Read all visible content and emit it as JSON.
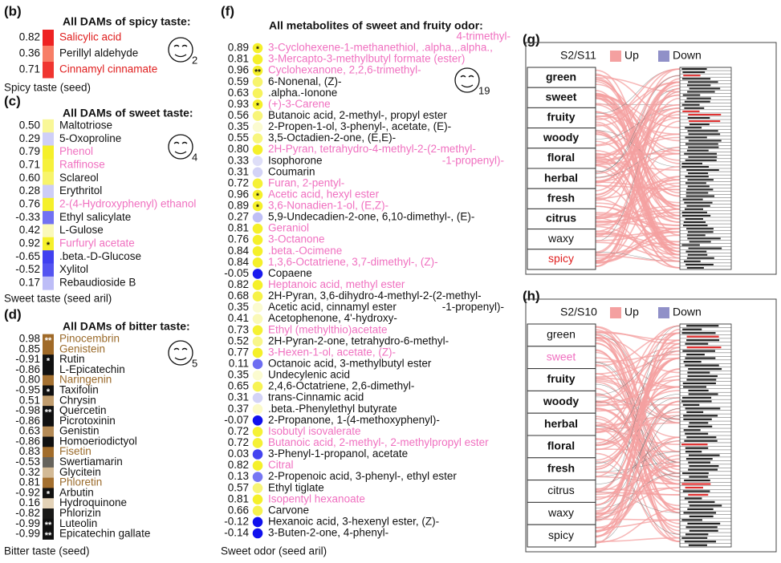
{
  "taste_panels": [
    {
      "label": "(b)",
      "title": "All DAMs of spicy taste:",
      "footer": "Spicy taste (seed)",
      "icon_count": "2",
      "highlight_color": "#e02020",
      "star_color": "#111",
      "colors": {
        "base": "#ffc9a0",
        "high": "#ee2222",
        "low": "#ee2222"
      },
      "rows": [
        {
          "value": "0.82",
          "name": "Salicylic acid",
          "highlight": true
        },
        {
          "value": "0.36",
          "name": "Perillyl aldehyde"
        },
        {
          "value": "0.71",
          "name": "Cinnamyl cinnamate",
          "highlight": true
        }
      ]
    },
    {
      "label": "(c)",
      "title": "All DAMs of sweet taste:",
      "footer": "Sweet taste (seed aril)",
      "icon_count": "4",
      "highlight_color": "#f070c0",
      "star_color": "#111",
      "colors": {
        "base": "#fbfbd8",
        "high": "#f5f02a",
        "low": "#4040f0"
      },
      "rows": [
        {
          "value": "0.50",
          "name": "Maltotriose"
        },
        {
          "value": "0.29",
          "name": "5-Oxoproline"
        },
        {
          "value": "0.79",
          "name": "Phenol",
          "highlight": true
        },
        {
          "value": "0.71",
          "name": "Raffinose",
          "highlight": true
        },
        {
          "value": "0.60",
          "name": "Sclareol"
        },
        {
          "value": "0.28",
          "name": "Erythritol"
        },
        {
          "value": "0.76",
          "name": "2-(4-Hydroxyphenyl) ethanol",
          "highlight": true
        },
        {
          "value": "-0.33",
          "name": "Ethyl salicylate"
        },
        {
          "value": "0.42",
          "name": "L-Gulose"
        },
        {
          "value": "0.92",
          "name": "Furfuryl acetate",
          "highlight": true,
          "star": "*"
        },
        {
          "value": "-0.65",
          "name": ".beta.-D-Glucose"
        },
        {
          "value": "-0.52",
          "name": "Xylitol"
        },
        {
          "value": "0.17",
          "name": "Rebaudioside B"
        }
      ]
    },
    {
      "label": "(d)",
      "title": "All DAMs of bitter taste:",
      "footer": "Bitter taste (seed)",
      "icon_count": "5",
      "highlight_color": "#9a6a2a",
      "star_color": "#fff",
      "colors": {
        "base": "#f2ead8",
        "high": "#a06a28",
        "low": "#111111"
      },
      "rows": [
        {
          "value": "0.98",
          "name": "Pinocembrin",
          "highlight": true,
          "star": "**"
        },
        {
          "value": "0.85",
          "name": "Genistein",
          "highlight": true
        },
        {
          "value": "-0.91",
          "name": "Rutin",
          "star": "*"
        },
        {
          "value": "-0.86",
          "name": "L-Epicatechin"
        },
        {
          "value": "0.80",
          "name": "Naringenin",
          "highlight": true
        },
        {
          "value": "-0.95",
          "name": "Taxifolin",
          "star": "*"
        },
        {
          "value": "0.51",
          "name": "Chrysin"
        },
        {
          "value": "-0.98",
          "name": "Quercetin",
          "star": "**"
        },
        {
          "value": "-0.86",
          "name": "Picrotoxinin"
        },
        {
          "value": "0.63",
          "name": "Genistin"
        },
        {
          "value": "-0.86",
          "name": "Homoeriodictyol"
        },
        {
          "value": "0.83",
          "name": "Fisetin",
          "highlight": true
        },
        {
          "value": "-0.53",
          "name": "Swertiamarin"
        },
        {
          "value": "0.32",
          "name": "Glycitein"
        },
        {
          "value": "0.81",
          "name": "Phloretin",
          "highlight": true
        },
        {
          "value": "-0.92",
          "name": "Arbutin",
          "star": "*"
        },
        {
          "value": "0.16",
          "name": "Hydroquinone"
        },
        {
          "value": "-0.82",
          "name": "Phlorizin"
        },
        {
          "value": "-0.99",
          "name": "Luteolin",
          "star": "**"
        },
        {
          "value": "-0.99",
          "name": "Epicatechin gallate",
          "star": "**"
        }
      ]
    }
  ],
  "odor_panel": {
    "label": "(f)",
    "title": "All metabolites of sweet and fruity odor:",
    "footer": "Sweet odor (seed aril)",
    "icon_count": "19",
    "highlight_color": "#f070c0",
    "colors": {
      "base": "#e8e8f8",
      "high": "#f5f02a",
      "low": "#1010ee"
    },
    "rows": [
      {
        "value": "0.89",
        "name": "3-Cyclohexene-1-methanethiol, .alpha.,.alpha.,",
        "wrap": "4-trimethyl-",
        "highlight": true,
        "star": "*"
      },
      {
        "value": "0.81",
        "name": "3-Mercapto-3-methylbutyl formate (ester)",
        "highlight": true
      },
      {
        "value": "0.96",
        "name": "Cyclohexanone, 2,2,6-trimethyl-",
        "highlight": true,
        "star": "**"
      },
      {
        "value": "0.59",
        "name": "6-Nonenal, (Z)-"
      },
      {
        "value": "0.63",
        "name": ".alpha.-Ionone"
      },
      {
        "value": "0.93",
        "name": "(+)-3-Carene",
        "highlight": true,
        "star": "*"
      },
      {
        "value": "0.56",
        "name": "Butanoic acid, 2-methyl-, propyl ester"
      },
      {
        "value": "0.35",
        "name": "2-Propen-1-ol, 3-phenyl-, acetate, (E)-"
      },
      {
        "value": "0.55",
        "name": "3,5-Octadien-2-one, (E,E)-"
      },
      {
        "value": "0.80",
        "name": "2H-Pyran, tetrahydro-4-methyl-2-(2-methyl-",
        "wrap": "-1-propenyl)-",
        "highlight": true
      },
      {
        "value": "0.33",
        "name": "Isophorone"
      },
      {
        "value": "0.31",
        "name": "Coumarin"
      },
      {
        "value": "0.72",
        "name": "Furan, 2-pentyl-",
        "highlight": true
      },
      {
        "value": "0.96",
        "name": "Acetic acid, hexyl ester",
        "highlight": true,
        "star": "*"
      },
      {
        "value": "0.89",
        "name": "3,6-Nonadien-1-ol, (E,Z)-",
        "highlight": true,
        "star": "*"
      },
      {
        "value": "0.27",
        "name": "5,9-Undecadien-2-one, 6,10-dimethyl-, (E)-"
      },
      {
        "value": "0.81",
        "name": "Geraniol",
        "highlight": true
      },
      {
        "value": "0.76",
        "name": "3-Octanone",
        "highlight": true
      },
      {
        "value": "0.84",
        "name": ".beta.-Ocimene",
        "highlight": true
      },
      {
        "value": "0.84",
        "name": "1,3,6-Octatriene, 3,7-dimethyl-, (Z)-",
        "highlight": true
      },
      {
        "value": "-0.05",
        "name": "Copaene"
      },
      {
        "value": "0.82",
        "name": "Heptanoic acid, methyl ester",
        "highlight": true
      },
      {
        "value": "0.68",
        "name": "2H-Pyran, 3,6-dihydro-4-methyl-2-(2-methyl-",
        "wrap": "-1-propenyl)-"
      },
      {
        "value": "0.35",
        "name": "Acetic acid, cinnamyl ester"
      },
      {
        "value": "0.41",
        "name": "Acetophenone, 4'-hydroxy-"
      },
      {
        "value": "0.73",
        "name": "Ethyl (methylthio)acetate",
        "highlight": true
      },
      {
        "value": "0.52",
        "name": "2H-Pyran-2-one, tetrahydro-6-methyl-"
      },
      {
        "value": "0.77",
        "name": "3-Hexen-1-ol, acetate, (Z)-",
        "highlight": true
      },
      {
        "value": "0.11",
        "name": "Octanoic acid, 3-methylbutyl ester"
      },
      {
        "value": "0.35",
        "name": "Undecylenic acid"
      },
      {
        "value": "0.65",
        "name": "2,4,6-Octatriene, 2,6-dimethyl-"
      },
      {
        "value": "0.31",
        "name": "trans-Cinnamic acid"
      },
      {
        "value": "0.37",
        "name": ".beta.-Phenylethyl butyrate"
      },
      {
        "value": "-0.07",
        "name": "2-Propanone, 1-(4-methoxyphenyl)-"
      },
      {
        "value": "0.72",
        "name": "Isobutyl isovalerate",
        "highlight": true
      },
      {
        "value": "0.72",
        "name": "Butanoic acid, 2-methyl-, 2-methylpropyl ester",
        "highlight": true
      },
      {
        "value": "0.03",
        "name": "3-Phenyl-1-propanol, acetate"
      },
      {
        "value": "0.82",
        "name": "Citral",
        "highlight": true
      },
      {
        "value": "0.13",
        "name": "2-Propenoic acid, 3-phenyl-, ethyl ester"
      },
      {
        "value": "0.57",
        "name": "Ethyl tiglate"
      },
      {
        "value": "0.81",
        "name": "Isopentyl hexanoate",
        "highlight": true
      },
      {
        "value": "0.66",
        "name": "Carvone"
      },
      {
        "value": "-0.12",
        "name": "Hexanoic acid, 3-hexenyl ester, (Z)-"
      },
      {
        "value": "-0.14",
        "name": "3-Buten-2-one, 4-phenyl-"
      }
    ]
  },
  "sankey_panels": [
    {
      "label": "(g)",
      "comparison": "S2/S11",
      "legend": [
        {
          "name": "Up",
          "color": "#f4a0a0"
        },
        {
          "name": "Down",
          "color": "#9090c8"
        }
      ],
      "categories": [
        {
          "name": "green",
          "bold": true
        },
        {
          "name": "sweet",
          "bold": true
        },
        {
          "name": "fruity",
          "bold": true
        },
        {
          "name": "woody",
          "bold": true
        },
        {
          "name": "floral",
          "bold": true
        },
        {
          "name": "herbal",
          "bold": true
        },
        {
          "name": "fresh",
          "bold": true
        },
        {
          "name": "citrus",
          "bold": true
        },
        {
          "name": "waxy"
        },
        {
          "name": "spicy",
          "color": "#e02020"
        }
      ]
    },
    {
      "label": "(h)",
      "comparison": "S2/S10",
      "legend": [
        {
          "name": "Up",
          "color": "#f4a0a0"
        },
        {
          "name": "Down",
          "color": "#9090c8"
        }
      ],
      "categories": [
        {
          "name": "green"
        },
        {
          "name": "sweet",
          "color": "#f070c0"
        },
        {
          "name": "fruity",
          "bold": true
        },
        {
          "name": "woody",
          "bold": true
        },
        {
          "name": "herbal",
          "bold": true
        },
        {
          "name": "floral",
          "bold": true
        },
        {
          "name": "fresh",
          "bold": true
        },
        {
          "name": "citrus"
        },
        {
          "name": "waxy"
        },
        {
          "name": "spicy"
        }
      ]
    }
  ]
}
